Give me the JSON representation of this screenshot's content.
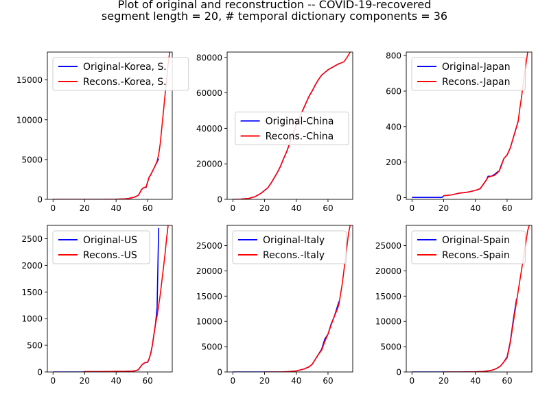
{
  "figure": {
    "title_line1": "Plot of original and reconstruction -- COVID-19-recovered",
    "title_line2": "segment length = 20, # temporal dictionary components = 36"
  },
  "colors": {
    "original": "#0000ff",
    "reconstruction": "#ff0000"
  },
  "chart_data": [
    {
      "type": "line",
      "xlim": [
        -3.6,
        75.6
      ],
      "ylim": [
        0,
        18500
      ],
      "xticks": [
        0,
        20,
        40,
        60
      ],
      "yticks": [
        0,
        5000,
        10000,
        15000
      ],
      "legend_loc": "upper-left",
      "series": [
        {
          "name": "Original-Korea, S.",
          "role": "original",
          "x": [
            0,
            10,
            20,
            30,
            35,
            40,
            45,
            48,
            50,
            52,
            54,
            55,
            56,
            57,
            58,
            59,
            60,
            61,
            62,
            63,
            64,
            65,
            66,
            67
          ],
          "y": [
            0,
            0,
            0,
            0,
            10,
            20,
            50,
            100,
            200,
            300,
            500,
            800,
            1200,
            1400,
            1500,
            1500,
            2200,
            2800,
            3100,
            3500,
            3900,
            4300,
            4700,
            5100
          ]
        },
        {
          "name": "Recons.-Korea, S.",
          "role": "reconstruction",
          "x": [
            0,
            10,
            20,
            30,
            35,
            40,
            45,
            48,
            50,
            52,
            54,
            55,
            56,
            57,
            58,
            59,
            60,
            61,
            62,
            63,
            64,
            65,
            66,
            67,
            68,
            69,
            70,
            71,
            72,
            73,
            74
          ],
          "y": [
            0,
            0,
            0,
            0,
            10,
            20,
            50,
            100,
            200,
            300,
            500,
            800,
            1200,
            1400,
            1500,
            1550,
            2200,
            2800,
            3100,
            3500,
            3900,
            4300,
            4800,
            5600,
            7000,
            9000,
            11000,
            13000,
            15000,
            17000,
            18500
          ]
        }
      ]
    },
    {
      "type": "line",
      "xlim": [
        -3.6,
        75.6
      ],
      "ylim": [
        0,
        83000
      ],
      "xticks": [
        0,
        20,
        40,
        60
      ],
      "yticks": [
        0,
        20000,
        40000,
        60000,
        80000
      ],
      "legend_loc": "center-right",
      "series": [
        {
          "name": "Original-China",
          "role": "original",
          "x": [
            0,
            5,
            10,
            14,
            18,
            20,
            22,
            24,
            26,
            28,
            30,
            32,
            34,
            36,
            38,
            40,
            42,
            44,
            46,
            48,
            50,
            52,
            54,
            56,
            58,
            60,
            62,
            64,
            66,
            67
          ],
          "y": [
            0,
            100,
            500,
            1500,
            3500,
            5000,
            6500,
            9000,
            12000,
            15000,
            18500,
            23000,
            27000,
            32000,
            37000,
            42000,
            46000,
            50000,
            54000,
            58000,
            61000,
            64500,
            67500,
            70000,
            71500,
            73000,
            74000,
            75000,
            76000,
            76500
          ]
        },
        {
          "name": "Recons.-China",
          "role": "reconstruction",
          "x": [
            0,
            5,
            10,
            14,
            18,
            20,
            22,
            24,
            26,
            28,
            30,
            32,
            34,
            36,
            38,
            40,
            42,
            44,
            46,
            48,
            50,
            52,
            54,
            56,
            58,
            60,
            62,
            64,
            66,
            68,
            70,
            72,
            74
          ],
          "y": [
            0,
            100,
            500,
            1500,
            3500,
            5000,
            6500,
            9000,
            12000,
            15000,
            18500,
            23000,
            27000,
            32000,
            37000,
            42000,
            46000,
            50000,
            54000,
            58000,
            61000,
            64500,
            67500,
            70000,
            71500,
            73000,
            74000,
            75000,
            76000,
            76800,
            77500,
            80000,
            83000
          ]
        }
      ]
    },
    {
      "type": "line",
      "xlim": [
        -3.6,
        75.6
      ],
      "ylim": [
        -10,
        820
      ],
      "xticks": [
        0,
        20,
        40,
        60
      ],
      "yticks": [
        0,
        200,
        400,
        600,
        800
      ],
      "legend_loc": "upper-left",
      "series": [
        {
          "name": "Original-Japan",
          "role": "original",
          "x": [
            0,
            5,
            10,
            15,
            19,
            20,
            25,
            30,
            35,
            40,
            43,
            45,
            47,
            48,
            50,
            52,
            54,
            55,
            56,
            58,
            60,
            62,
            64,
            65,
            66,
            67
          ],
          "y": [
            1,
            1,
            1,
            1,
            1,
            10,
            15,
            25,
            30,
            40,
            50,
            75,
            100,
            120,
            120,
            130,
            145,
            150,
            175,
            220,
            240,
            280,
            340,
            370,
            400,
            430
          ]
        },
        {
          "name": "Recons.-Japan",
          "role": "reconstruction",
          "x": [
            20,
            25,
            30,
            35,
            40,
            43,
            45,
            47,
            48,
            50,
            52,
            54,
            55,
            56,
            58,
            60,
            62,
            64,
            65,
            66,
            67,
            68,
            69,
            70,
            71,
            72,
            73
          ],
          "y": [
            10,
            15,
            25,
            30,
            40,
            50,
            75,
            100,
            115,
            120,
            125,
            140,
            150,
            170,
            220,
            240,
            280,
            340,
            370,
            400,
            430,
            500,
            560,
            630,
            700,
            760,
            820
          ]
        }
      ]
    },
    {
      "type": "line",
      "xlim": [
        -3.6,
        75.6
      ],
      "ylim": [
        0,
        2750
      ],
      "xticks": [
        0,
        20,
        40,
        60
      ],
      "yticks": [
        0,
        500,
        1000,
        1500,
        2000,
        2500
      ],
      "legend_loc": "upper-left",
      "series": [
        {
          "name": "Original-US",
          "role": "original",
          "x": [
            0,
            10,
            19,
            20,
            30,
            40,
            45,
            50,
            52,
            54,
            55,
            56,
            57,
            58,
            59,
            60,
            61,
            62,
            63,
            64,
            65,
            66,
            67
          ],
          "y": [
            0,
            0,
            0,
            5,
            5,
            10,
            10,
            15,
            20,
            40,
            80,
            120,
            150,
            170,
            180,
            180,
            250,
            350,
            500,
            700,
            900,
            1200,
            2700
          ]
        },
        {
          "name": "Recons.-US",
          "role": "reconstruction",
          "x": [
            19,
            20,
            30,
            40,
            45,
            50,
            52,
            54,
            55,
            56,
            57,
            58,
            59,
            60,
            61,
            62,
            63,
            64,
            65,
            66,
            67,
            68,
            69,
            70,
            71,
            72,
            73
          ],
          "y": [
            0,
            5,
            5,
            10,
            10,
            15,
            20,
            40,
            80,
            120,
            150,
            170,
            180,
            190,
            250,
            350,
            500,
            700,
            900,
            1050,
            1250,
            1450,
            1700,
            1950,
            2200,
            2500,
            2750
          ]
        }
      ]
    },
    {
      "type": "line",
      "xlim": [
        -3.6,
        75.6
      ],
      "ylim": [
        0,
        29000
      ],
      "xticks": [
        0,
        20,
        40,
        60
      ],
      "yticks": [
        0,
        5000,
        10000,
        15000,
        20000,
        25000
      ],
      "legend_loc": "upper-left",
      "series": [
        {
          "name": "Original-Italy",
          "role": "original",
          "x": [
            0,
            10,
            20,
            30,
            35,
            40,
            45,
            48,
            50,
            52,
            54,
            56,
            58,
            60,
            62,
            64,
            66,
            67
          ],
          "y": [
            0,
            0,
            0,
            0,
            50,
            200,
            600,
            1000,
            1500,
            2500,
            3500,
            4500,
            6500,
            7500,
            9500,
            11000,
            13000,
            14000
          ]
        },
        {
          "name": "Recons.-Italy",
          "role": "reconstruction",
          "x": [
            20,
            30,
            35,
            40,
            45,
            48,
            50,
            52,
            54,
            56,
            58,
            60,
            62,
            64,
            66,
            67,
            68,
            69,
            70,
            71,
            72,
            73,
            74
          ],
          "y": [
            0,
            0,
            50,
            200,
            600,
            1000,
            1500,
            2500,
            3500,
            4300,
            6000,
            7500,
            9300,
            11000,
            12500,
            13500,
            15500,
            17500,
            20000,
            22500,
            25000,
            27500,
            29000
          ]
        }
      ]
    },
    {
      "type": "line",
      "xlim": [
        -3.6,
        75.6
      ],
      "ylim": [
        0,
        29000
      ],
      "xticks": [
        0,
        20,
        40,
        60
      ],
      "yticks": [
        0,
        5000,
        10000,
        15000,
        20000,
        25000
      ],
      "legend_loc": "upper-left",
      "series": [
        {
          "name": "Original-Spain",
          "role": "original",
          "x": [
            0,
            10,
            20,
            30,
            40,
            45,
            50,
            52,
            54,
            56,
            58,
            60,
            62,
            64,
            66
          ],
          "y": [
            0,
            0,
            0,
            0,
            30,
            100,
            300,
            500,
            800,
            1200,
            2000,
            3000,
            6000,
            10500,
            14500
          ]
        },
        {
          "name": "Recons.-Spain",
          "role": "reconstruction",
          "x": [
            20,
            30,
            40,
            45,
            50,
            52,
            54,
            56,
            58,
            60,
            62,
            64,
            66,
            67,
            68,
            69,
            70,
            71,
            72,
            73,
            74
          ],
          "y": [
            0,
            0,
            30,
            100,
            300,
            500,
            800,
            1200,
            2000,
            2800,
            5800,
            10000,
            14000,
            16000,
            18000,
            20000,
            22000,
            24000,
            26000,
            28000,
            29000
          ]
        }
      ]
    }
  ]
}
